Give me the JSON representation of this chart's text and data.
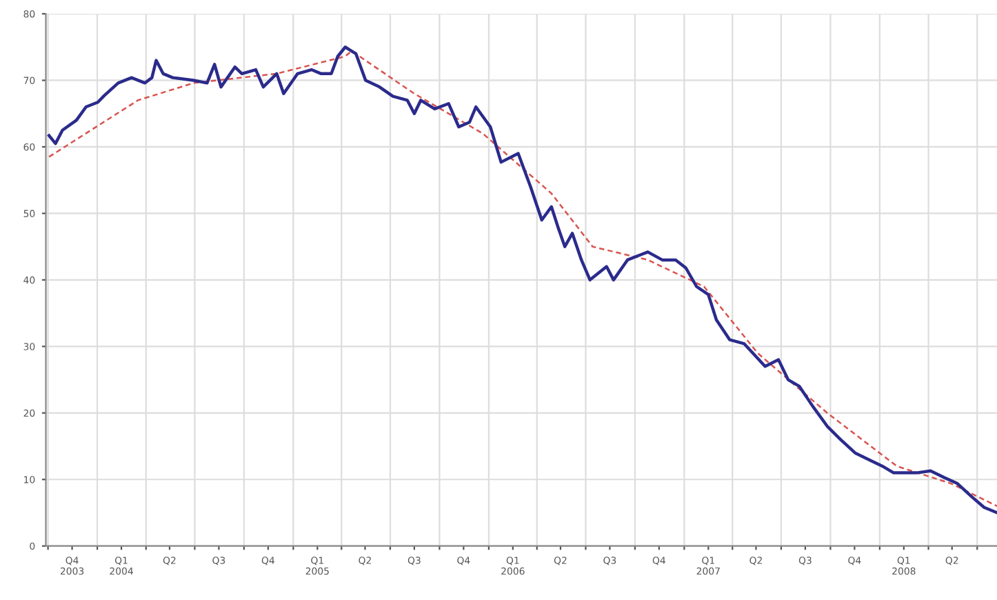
{
  "chart_data": {
    "type": "line",
    "xlim": [
      "2003-09-27",
      "2008-08-07"
    ],
    "ylim": [
      0,
      80
    ],
    "yticks": [
      0,
      10,
      20,
      30,
      40,
      50,
      60,
      70,
      80
    ],
    "xticks": [
      {
        "value": "2003-10-01",
        "label": null
      },
      {
        "value": "2003-11-15",
        "label": "Q4\n2003"
      },
      {
        "value": "2004-01-01",
        "label": null
      },
      {
        "value": "2004-02-15",
        "label": "Q1\n2004"
      },
      {
        "value": "2004-04-01",
        "label": null
      },
      {
        "value": "2004-05-15",
        "label": "Q2"
      },
      {
        "value": "2004-07-01",
        "label": null
      },
      {
        "value": "2004-08-15",
        "label": "Q3"
      },
      {
        "value": "2004-10-01",
        "label": null
      },
      {
        "value": "2004-11-15",
        "label": "Q4"
      },
      {
        "value": "2005-01-01",
        "label": null
      },
      {
        "value": "2005-02-15",
        "label": "Q1\n2005"
      },
      {
        "value": "2005-04-01",
        "label": null
      },
      {
        "value": "2005-05-15",
        "label": "Q2"
      },
      {
        "value": "2005-07-01",
        "label": null
      },
      {
        "value": "2005-08-15",
        "label": "Q3"
      },
      {
        "value": "2005-10-01",
        "label": null
      },
      {
        "value": "2005-11-15",
        "label": "Q4"
      },
      {
        "value": "2006-01-01",
        "label": null
      },
      {
        "value": "2006-02-15",
        "label": "Q1\n2006"
      },
      {
        "value": "2006-04-01",
        "label": null
      },
      {
        "value": "2006-05-15",
        "label": "Q2"
      },
      {
        "value": "2006-07-01",
        "label": null
      },
      {
        "value": "2006-08-15",
        "label": "Q3"
      },
      {
        "value": "2006-10-01",
        "label": null
      },
      {
        "value": "2006-11-15",
        "label": "Q4"
      },
      {
        "value": "2007-01-01",
        "label": null
      },
      {
        "value": "2007-02-15",
        "label": "Q1\n2007"
      },
      {
        "value": "2007-04-01",
        "label": null
      },
      {
        "value": "2007-05-15",
        "label": "Q2"
      },
      {
        "value": "2007-07-01",
        "label": null
      },
      {
        "value": "2007-08-15",
        "label": "Q3"
      },
      {
        "value": "2007-10-01",
        "label": null
      },
      {
        "value": "2007-11-15",
        "label": "Q4"
      },
      {
        "value": "2008-01-01",
        "label": null
      },
      {
        "value": "2008-02-15",
        "label": "Q1\n2008"
      },
      {
        "value": "2008-04-01",
        "label": null
      },
      {
        "value": "2008-05-15",
        "label": "Q2"
      },
      {
        "value": "2008-07-01",
        "label": null
      }
    ],
    "grid": true,
    "marker": "none",
    "series": [
      {
        "color": "#2b2b8c",
        "line_style": "solid",
        "x": [
          "2003-10-03",
          "2003-10-15",
          "2003-10-28",
          "2003-11-23",
          "2003-12-11",
          "2004-01-02",
          "2004-01-14",
          "2004-02-09",
          "2004-03-05",
          "2004-03-30",
          "2004-04-12",
          "2004-04-20",
          "2004-05-03",
          "2004-05-21",
          "2004-06-29",
          "2004-07-24",
          "2004-08-07",
          "2004-08-19",
          "2004-09-14",
          "2004-09-27",
          "2004-10-23",
          "2004-11-06",
          "2004-12-01",
          "2004-12-14",
          "2005-01-09",
          "2005-02-04",
          "2005-02-22",
          "2005-03-13",
          "2005-03-25",
          "2005-04-08",
          "2005-04-28",
          "2005-05-16",
          "2005-06-11",
          "2005-07-06",
          "2005-08-02",
          "2005-08-15",
          "2005-08-27",
          "2005-09-22",
          "2005-10-18",
          "2005-11-06",
          "2005-11-26",
          "2005-12-08",
          "2006-01-04",
          "2006-01-24",
          "2006-02-25",
          "2006-03-20",
          "2006-04-10",
          "2006-04-28",
          "2006-05-10",
          "2006-05-23",
          "2006-06-06",
          "2006-06-23",
          "2006-07-09",
          "2006-08-09",
          "2006-08-22",
          "2006-09-17",
          "2006-10-12",
          "2006-10-25",
          "2006-11-21",
          "2006-12-16",
          "2007-01-04",
          "2007-01-24",
          "2007-02-15",
          "2007-03-02",
          "2007-03-27",
          "2007-04-23",
          "2007-06-01",
          "2007-06-26",
          "2007-07-14",
          "2007-08-04",
          "2007-08-29",
          "2007-09-25",
          "2007-10-20",
          "2007-11-16",
          "2007-12-11",
          "2008-01-06",
          "2008-01-27",
          "2008-02-15",
          "2008-03-10",
          "2008-04-05",
          "2008-04-30",
          "2008-05-25",
          "2008-06-21",
          "2008-07-14",
          "2008-08-07"
        ],
        "values": [
          61.7,
          60.5,
          62.5,
          64,
          66,
          66.7,
          67.7,
          69.6,
          70.4,
          69.6,
          70.4,
          73,
          71,
          70.4,
          70,
          69.6,
          72.4,
          69,
          72,
          71,
          71.6,
          69,
          71,
          68,
          71,
          71.6,
          71,
          71,
          73.6,
          75,
          74,
          70,
          69,
          67.6,
          67,
          65,
          67,
          65.7,
          66.5,
          63,
          63.7,
          66,
          63,
          57.7,
          59,
          54,
          49,
          51,
          48,
          45,
          47,
          43,
          40,
          42,
          40,
          43,
          43.8,
          44.2,
          43,
          43,
          41.8,
          39,
          37.8,
          34,
          31,
          30.4,
          27,
          28,
          25,
          24,
          21,
          18,
          16,
          14,
          13,
          12,
          11,
          11,
          11,
          11.3,
          10.3,
          9.4,
          7.4,
          5.8,
          5
        ]
      },
      {
        "color": "#d9534f",
        "line_style": "dashed",
        "x": [
          "2003-10-03",
          "2004-03-17",
          "2004-06-29",
          "2004-12-01",
          "2005-04-08",
          "2005-04-20",
          "2005-08-15",
          "2005-12-21",
          "2006-04-28",
          "2006-07-14",
          "2006-10-25",
          "2007-02-07",
          "2007-05-18",
          "2007-09-25",
          "2008-02-02",
          "2008-05-13",
          "2008-08-07"
        ],
        "values": [
          58.5,
          67,
          69.6,
          71,
          73.6,
          74.4,
          68,
          62,
          53,
          45,
          43,
          39,
          29,
          20,
          12,
          9.4,
          6
        ]
      }
    ]
  }
}
